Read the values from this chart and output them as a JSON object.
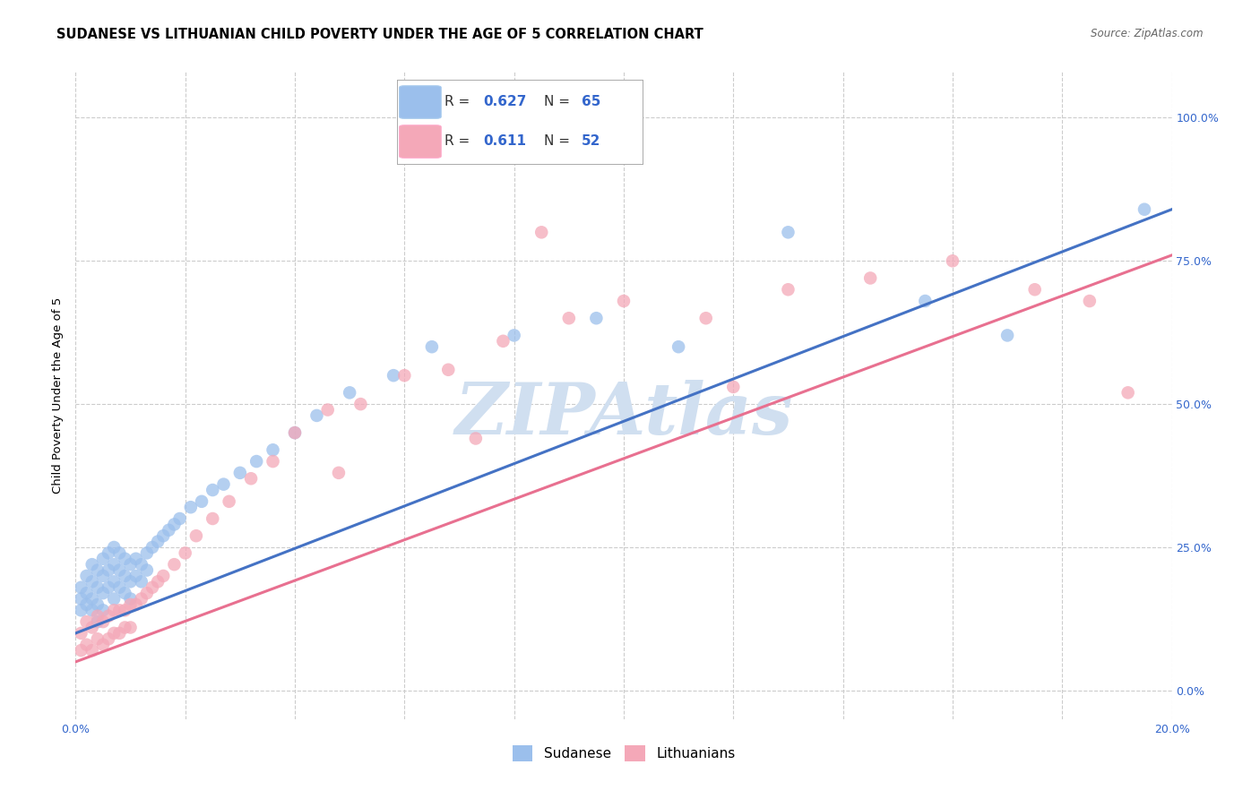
{
  "title": "SUDANESE VS LITHUANIAN CHILD POVERTY UNDER THE AGE OF 5 CORRELATION CHART",
  "source": "Source: ZipAtlas.com",
  "ylabel": "Child Poverty Under the Age of 5",
  "xlim": [
    0.0,
    0.2
  ],
  "ylim": [
    -0.05,
    1.08
  ],
  "ytick_labels": [
    "0.0%",
    "25.0%",
    "50.0%",
    "75.0%",
    "100.0%"
  ],
  "ytick_vals": [
    0.0,
    0.25,
    0.5,
    0.75,
    1.0
  ],
  "xtick_vals": [
    0.0,
    0.02,
    0.04,
    0.06,
    0.08,
    0.1,
    0.12,
    0.14,
    0.16,
    0.18,
    0.2
  ],
  "sudanese_color": "#9BBFEC",
  "lithuanian_color": "#F4A8B8",
  "regression_blue": "#4472C4",
  "regression_pink": "#E87090",
  "watermark_color": "#D0DFF0",
  "R_sudanese": 0.627,
  "N_sudanese": 65,
  "R_lithuanian": 0.611,
  "N_lithuanian": 52,
  "blue_text_color": "#3366CC",
  "legend_border_color": "#AAAAAA",
  "sudanese_x": [
    0.001,
    0.001,
    0.001,
    0.002,
    0.002,
    0.002,
    0.003,
    0.003,
    0.003,
    0.003,
    0.004,
    0.004,
    0.004,
    0.004,
    0.005,
    0.005,
    0.005,
    0.005,
    0.006,
    0.006,
    0.006,
    0.007,
    0.007,
    0.007,
    0.007,
    0.008,
    0.008,
    0.008,
    0.009,
    0.009,
    0.009,
    0.01,
    0.01,
    0.01,
    0.011,
    0.011,
    0.012,
    0.012,
    0.013,
    0.013,
    0.014,
    0.015,
    0.016,
    0.017,
    0.018,
    0.019,
    0.021,
    0.023,
    0.025,
    0.027,
    0.03,
    0.033,
    0.036,
    0.04,
    0.044,
    0.05,
    0.058,
    0.065,
    0.08,
    0.095,
    0.11,
    0.13,
    0.155,
    0.17,
    0.195
  ],
  "sudanese_y": [
    0.18,
    0.16,
    0.14,
    0.2,
    0.17,
    0.15,
    0.22,
    0.19,
    0.16,
    0.14,
    0.21,
    0.18,
    0.15,
    0.12,
    0.23,
    0.2,
    0.17,
    0.14,
    0.24,
    0.21,
    0.18,
    0.25,
    0.22,
    0.19,
    0.16,
    0.24,
    0.21,
    0.18,
    0.23,
    0.2,
    0.17,
    0.22,
    0.19,
    0.16,
    0.23,
    0.2,
    0.22,
    0.19,
    0.24,
    0.21,
    0.25,
    0.26,
    0.27,
    0.28,
    0.29,
    0.3,
    0.32,
    0.33,
    0.35,
    0.36,
    0.38,
    0.4,
    0.42,
    0.45,
    0.48,
    0.52,
    0.55,
    0.6,
    0.62,
    0.65,
    0.6,
    0.8,
    0.68,
    0.62,
    0.84
  ],
  "lithuanian_x": [
    0.001,
    0.001,
    0.002,
    0.002,
    0.003,
    0.003,
    0.004,
    0.004,
    0.005,
    0.005,
    0.006,
    0.006,
    0.007,
    0.007,
    0.008,
    0.008,
    0.009,
    0.009,
    0.01,
    0.01,
    0.011,
    0.012,
    0.013,
    0.014,
    0.015,
    0.016,
    0.018,
    0.02,
    0.022,
    0.025,
    0.028,
    0.032,
    0.036,
    0.04,
    0.046,
    0.052,
    0.06,
    0.068,
    0.078,
    0.09,
    0.1,
    0.115,
    0.13,
    0.145,
    0.16,
    0.175,
    0.185,
    0.192,
    0.048,
    0.073,
    0.12,
    0.085
  ],
  "lithuanian_y": [
    0.1,
    0.07,
    0.12,
    0.08,
    0.11,
    0.07,
    0.13,
    0.09,
    0.12,
    0.08,
    0.13,
    0.09,
    0.14,
    0.1,
    0.14,
    0.1,
    0.14,
    0.11,
    0.15,
    0.11,
    0.15,
    0.16,
    0.17,
    0.18,
    0.19,
    0.2,
    0.22,
    0.24,
    0.27,
    0.3,
    0.33,
    0.37,
    0.4,
    0.45,
    0.49,
    0.5,
    0.55,
    0.56,
    0.61,
    0.65,
    0.68,
    0.65,
    0.7,
    0.72,
    0.75,
    0.7,
    0.68,
    0.52,
    0.38,
    0.44,
    0.53,
    0.8
  ],
  "title_fontsize": 10.5,
  "axis_label_fontsize": 9.5,
  "tick_fontsize": 9
}
